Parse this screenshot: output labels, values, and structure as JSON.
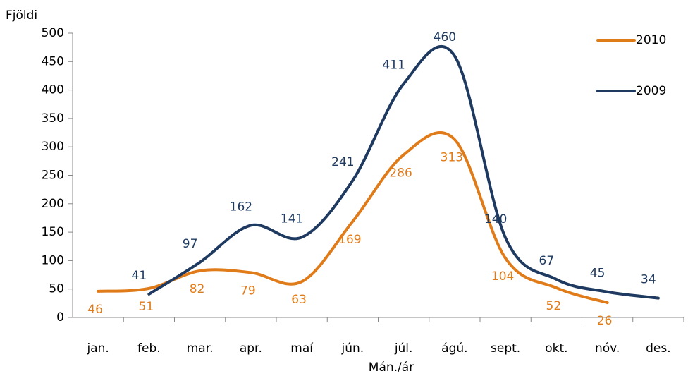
{
  "chart_data": {
    "type": "line",
    "y_label": "Fjöldi",
    "x_label": "Mán./ár",
    "categories": [
      "jan.",
      "feb.",
      "mar.",
      "apr.",
      "maí",
      "jún.",
      "júl.",
      "ágú.",
      "sept.",
      "okt.",
      "nóv.",
      "des."
    ],
    "series": [
      {
        "name": "2010",
        "color": "#e07b1a",
        "values": [
          46,
          51,
          82,
          79,
          63,
          169,
          286,
          313,
          104,
          52,
          26,
          null
        ]
      },
      {
        "name": "2009",
        "color": "#1f3a60",
        "values": [
          null,
          41,
          97,
          162,
          141,
          241,
          411,
          460,
          140,
          67,
          45,
          34
        ]
      }
    ],
    "ylim": [
      0,
      500
    ],
    "yticks": [
      0,
      50,
      100,
      150,
      200,
      250,
      300,
      350,
      400,
      450,
      500
    ],
    "smooth": true,
    "legend": "upper right"
  }
}
